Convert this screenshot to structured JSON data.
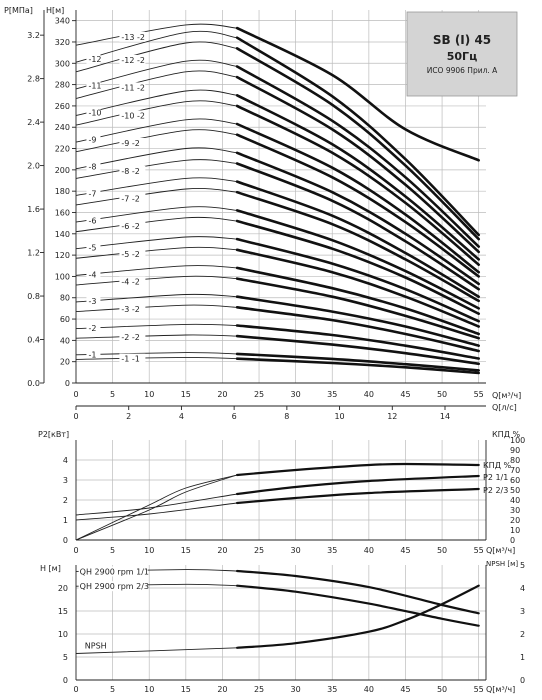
{
  "title_box": {
    "line1": "SB (I) 45",
    "line2": "50Гц",
    "line3": "ИСО 9906 Прил. A"
  },
  "chart_data": [
    {
      "type": "line",
      "name": "head_curves",
      "left_axis_P": {
        "label": "P[МПа]",
        "ticks": [
          0.0,
          0.4,
          0.8,
          1.2,
          1.6,
          2.0,
          2.4,
          2.8,
          3.2
        ]
      },
      "left_axis_H": {
        "label": "H[м]",
        "ticks": [
          0,
          20,
          40,
          60,
          80,
          100,
          120,
          140,
          160,
          180,
          200,
          220,
          240,
          260,
          280,
          300,
          320,
          340
        ],
        "ylim": [
          0,
          350
        ]
      },
      "x_axis_m3h": {
        "label": "Q[м³/ч]",
        "ticks": [
          0,
          5,
          10,
          15,
          20,
          25,
          30,
          35,
          40,
          45,
          50,
          55
        ],
        "xlim": [
          0,
          56
        ]
      },
      "x_axis_ls": {
        "label": "Q[л/с]",
        "ticks": [
          0,
          2,
          4,
          6,
          8,
          10,
          12,
          14
        ]
      },
      "bold_from_q": 22,
      "stage_labels": [
        "-1",
        "-1 -1",
        "-2",
        "-2 -2",
        "-3",
        "-3 -2",
        "-4",
        "-4 -2",
        "-5",
        "-5 -2",
        "-6",
        "-6 -2",
        "-7",
        "-7 -2",
        "-8",
        "-8 -2",
        "-9",
        "-9 -2",
        "-10",
        "-10 -2",
        "-11",
        "-11 -2",
        "-12",
        "-12 -2",
        "-13 -2"
      ],
      "series": [
        {
          "label": "-1",
          "values": [
            [
              0,
              26.5
            ],
            [
              15,
              28.5
            ],
            [
              22,
              27.3
            ],
            [
              35,
              22.6
            ],
            [
              45,
              17.6
            ],
            [
              55,
              11.8
            ]
          ]
        },
        {
          "label": "-1 -1",
          "values": [
            [
              0,
              22.1
            ],
            [
              15,
              24.0
            ],
            [
              22,
              22.8
            ],
            [
              35,
              18.8
            ],
            [
              45,
              14.7
            ],
            [
              55,
              9.4
            ]
          ]
        },
        {
          "label": "-2",
          "values": [
            [
              0,
              51
            ],
            [
              15,
              55
            ],
            [
              22,
              54
            ],
            [
              35,
              45
            ],
            [
              45,
              35
            ],
            [
              55,
              23
            ]
          ]
        },
        {
          "label": "-2 -2",
          "values": [
            [
              0,
              42
            ],
            [
              15,
              45
            ],
            [
              22,
              44
            ],
            [
              35,
              36
            ],
            [
              45,
              28
            ],
            [
              55,
              18
            ]
          ]
        },
        {
          "label": "-3",
          "values": [
            [
              0,
              76
            ],
            [
              15,
              83
            ],
            [
              22,
              81
            ],
            [
              35,
              67
            ],
            [
              45,
              53
            ],
            [
              55,
              35
            ]
          ]
        },
        {
          "label": "-3 -2",
          "values": [
            [
              0,
              67
            ],
            [
              15,
              73
            ],
            [
              22,
              71
            ],
            [
              35,
              59
            ],
            [
              45,
              46
            ],
            [
              55,
              30
            ]
          ]
        },
        {
          "label": "-4",
          "values": [
            [
              0,
              101
            ],
            [
              15,
              110
            ],
            [
              22,
              108
            ],
            [
              35,
              89
            ],
            [
              45,
              70
            ],
            [
              55,
              46
            ]
          ]
        },
        {
          "label": "-4 -2",
          "values": [
            [
              0,
              92
            ],
            [
              15,
              100
            ],
            [
              22,
              98
            ],
            [
              35,
              81
            ],
            [
              45,
              63
            ],
            [
              55,
              42
            ]
          ]
        },
        {
          "label": "-5",
          "values": [
            [
              0,
              126
            ],
            [
              15,
              137
            ],
            [
              22,
              135
            ],
            [
              35,
              112
            ],
            [
              45,
              88
            ],
            [
              55,
              58
            ]
          ]
        },
        {
          "label": "-5 -2",
          "values": [
            [
              0,
              117
            ],
            [
              15,
              127
            ],
            [
              22,
              125
            ],
            [
              35,
              104
            ],
            [
              45,
              81
            ],
            [
              55,
              53
            ]
          ]
        },
        {
          "label": "-6",
          "values": [
            [
              0,
              151
            ],
            [
              15,
              165
            ],
            [
              22,
              162
            ],
            [
              35,
              134
            ],
            [
              45,
              105
            ],
            [
              55,
              70
            ]
          ]
        },
        {
          "label": "-6 -2",
          "values": [
            [
              0,
              142
            ],
            [
              15,
              155
            ],
            [
              22,
              152
            ],
            [
              35,
              126
            ],
            [
              45,
              99
            ],
            [
              55,
              65
            ]
          ]
        },
        {
          "label": "-7",
          "values": [
            [
              0,
              176
            ],
            [
              15,
              192
            ],
            [
              22,
              189
            ],
            [
              35,
              157
            ],
            [
              45,
              122
            ],
            [
              55,
              81
            ]
          ]
        },
        {
          "label": "-7 -2",
          "values": [
            [
              0,
              167
            ],
            [
              15,
              182
            ],
            [
              22,
              179
            ],
            [
              35,
              149
            ],
            [
              45,
              116
            ],
            [
              55,
              77
            ]
          ]
        },
        {
          "label": "-8",
          "values": [
            [
              0,
              201
            ],
            [
              15,
              220
            ],
            [
              22,
              216
            ],
            [
              35,
              179
            ],
            [
              45,
              140
            ],
            [
              55,
              93
            ]
          ]
        },
        {
          "label": "-8 -2",
          "values": [
            [
              0,
              192
            ],
            [
              15,
              209
            ],
            [
              22,
              206
            ],
            [
              35,
              171
            ],
            [
              45,
              133
            ],
            [
              55,
              88
            ]
          ]
        },
        {
          "label": "-9",
          "values": [
            [
              0,
              226
            ],
            [
              15,
              247
            ],
            [
              22,
              243
            ],
            [
              35,
              202
            ],
            [
              45,
              158
            ],
            [
              55,
              104
            ]
          ]
        },
        {
          "label": "-9 -2",
          "values": [
            [
              0,
              217
            ],
            [
              15,
              237
            ],
            [
              22,
              233
            ],
            [
              35,
              193
            ],
            [
              45,
              151
            ],
            [
              55,
              100
            ]
          ]
        },
        {
          "label": "-10",
          "values": [
            [
              0,
              251
            ],
            [
              15,
              274
            ],
            [
              22,
              270
            ],
            [
              35,
              224
            ],
            [
              45,
              175
            ],
            [
              55,
              116
            ]
          ]
        },
        {
          "label": "-10 -2",
          "values": [
            [
              0,
              242
            ],
            [
              15,
              264
            ],
            [
              22,
              260
            ],
            [
              35,
              216
            ],
            [
              45,
              169
            ],
            [
              55,
              111
            ]
          ]
        },
        {
          "label": "-11",
          "values": [
            [
              0,
              276
            ],
            [
              15,
              302
            ],
            [
              22,
              297
            ],
            [
              35,
              246
            ],
            [
              45,
              193
            ],
            [
              55,
              128
            ]
          ]
        },
        {
          "label": "-11 -2",
          "values": [
            [
              0,
              267
            ],
            [
              15,
              292
            ],
            [
              22,
              287
            ],
            [
              35,
              238
            ],
            [
              45,
              186
            ],
            [
              55,
              123
            ]
          ]
        },
        {
          "label": "-12",
          "values": [
            [
              0,
              301
            ],
            [
              15,
              329
            ],
            [
              22,
              324
            ],
            [
              35,
              269
            ],
            [
              45,
              210
            ],
            [
              55,
              139
            ]
          ]
        },
        {
          "label": "-12 -2",
          "values": [
            [
              0,
              292
            ],
            [
              15,
              319
            ],
            [
              22,
              314
            ],
            [
              35,
              261
            ],
            [
              45,
              204
            ],
            [
              55,
              135
            ]
          ]
        },
        {
          "label": "-13 -2",
          "values": [
            [
              0,
              317
            ],
            [
              15,
              336
            ],
            [
              22,
              333
            ],
            [
              35,
              289
            ],
            [
              45,
              238
            ],
            [
              55,
              209
            ]
          ]
        }
      ]
    },
    {
      "type": "line",
      "name": "power_efficiency",
      "left_axis": {
        "label": "P2[кВт]",
        "ticks": [
          0,
          1,
          2,
          3,
          4
        ],
        "ylim": [
          0,
          5
        ]
      },
      "right_axis": {
        "label": "КПД %",
        "ticks": [
          0,
          10,
          20,
          30,
          40,
          50,
          60,
          70,
          80,
          90,
          100
        ],
        "ylim": [
          0,
          100
        ]
      },
      "x_axis": {
        "label": "Q[м³/ч]",
        "ticks": [
          0,
          5,
          10,
          15,
          20,
          25,
          30,
          35,
          40,
          45,
          50,
          55
        ],
        "xlim": [
          0,
          56
        ]
      },
      "legend": [
        "КПД %",
        "P2 1/1",
        "P2 2/3"
      ],
      "series": [
        {
          "name": "КПД %",
          "axis": "right",
          "values": [
            [
              0,
              0
            ],
            [
              10,
              30
            ],
            [
              15,
              48
            ],
            [
              22,
              65
            ],
            [
              30,
              70
            ],
            [
              40,
              75
            ],
            [
              45,
              76
            ],
            [
              55,
              75
            ]
          ]
        },
        {
          "name": "P2 1/1",
          "axis": "left",
          "values": [
            [
              0,
              1.25
            ],
            [
              10,
              1.6
            ],
            [
              22,
              2.3
            ],
            [
              30,
              2.65
            ],
            [
              40,
              2.95
            ],
            [
              55,
              3.2
            ]
          ]
        },
        {
          "name": "P2 2/3",
          "axis": "left",
          "values": [
            [
              0,
              1.0
            ],
            [
              10,
              1.3
            ],
            [
              22,
              1.85
            ],
            [
              30,
              2.1
            ],
            [
              40,
              2.35
            ],
            [
              55,
              2.55
            ]
          ]
        },
        {
          "name": "КПД % 2/3",
          "axis": "right",
          "values": [
            [
              0,
              0
            ],
            [
              10,
              35
            ],
            [
              15,
              52
            ],
            [
              22,
              65
            ]
          ]
        }
      ]
    },
    {
      "type": "line",
      "name": "npsh",
      "left_axis": {
        "label": "H [м]",
        "ticks": [
          0,
          5,
          10,
          15,
          20
        ],
        "ylim": [
          0,
          25
        ]
      },
      "right_axis": {
        "label": "NPSH [м]",
        "ticks": [
          0,
          1,
          2,
          3,
          4,
          5
        ],
        "ylim": [
          0,
          5
        ]
      },
      "x_axis": {
        "label": "Q[м³/ч]",
        "ticks": [
          0,
          5,
          10,
          15,
          20,
          25,
          30,
          35,
          40,
          45,
          50,
          55
        ],
        "xlim": [
          0,
          56
        ]
      },
      "series": [
        {
          "name": "QH 2900 rpm 1/1",
          "axis": "left",
          "values": [
            [
              0,
              23.6
            ],
            [
              15,
              24.0
            ],
            [
              22,
              23.7
            ],
            [
              30,
              22.6
            ],
            [
              40,
              20.2
            ],
            [
              50,
              16.3
            ],
            [
              55,
              14.5
            ]
          ]
        },
        {
          "name": "QH 2900 rpm 2/3",
          "axis": "left",
          "values": [
            [
              0,
              20.4
            ],
            [
              15,
              20.8
            ],
            [
              22,
              20.5
            ],
            [
              30,
              19.2
            ],
            [
              40,
              16.6
            ],
            [
              50,
              13.3
            ],
            [
              55,
              11.8
            ]
          ]
        },
        {
          "name": "NPSH",
          "axis": "right",
          "values": [
            [
              0,
              1.15
            ],
            [
              22,
              1.4
            ],
            [
              30,
              1.6
            ],
            [
              40,
              2.1
            ],
            [
              45,
              2.6
            ],
            [
              50,
              3.3
            ],
            [
              55,
              4.1
            ]
          ]
        }
      ]
    }
  ]
}
